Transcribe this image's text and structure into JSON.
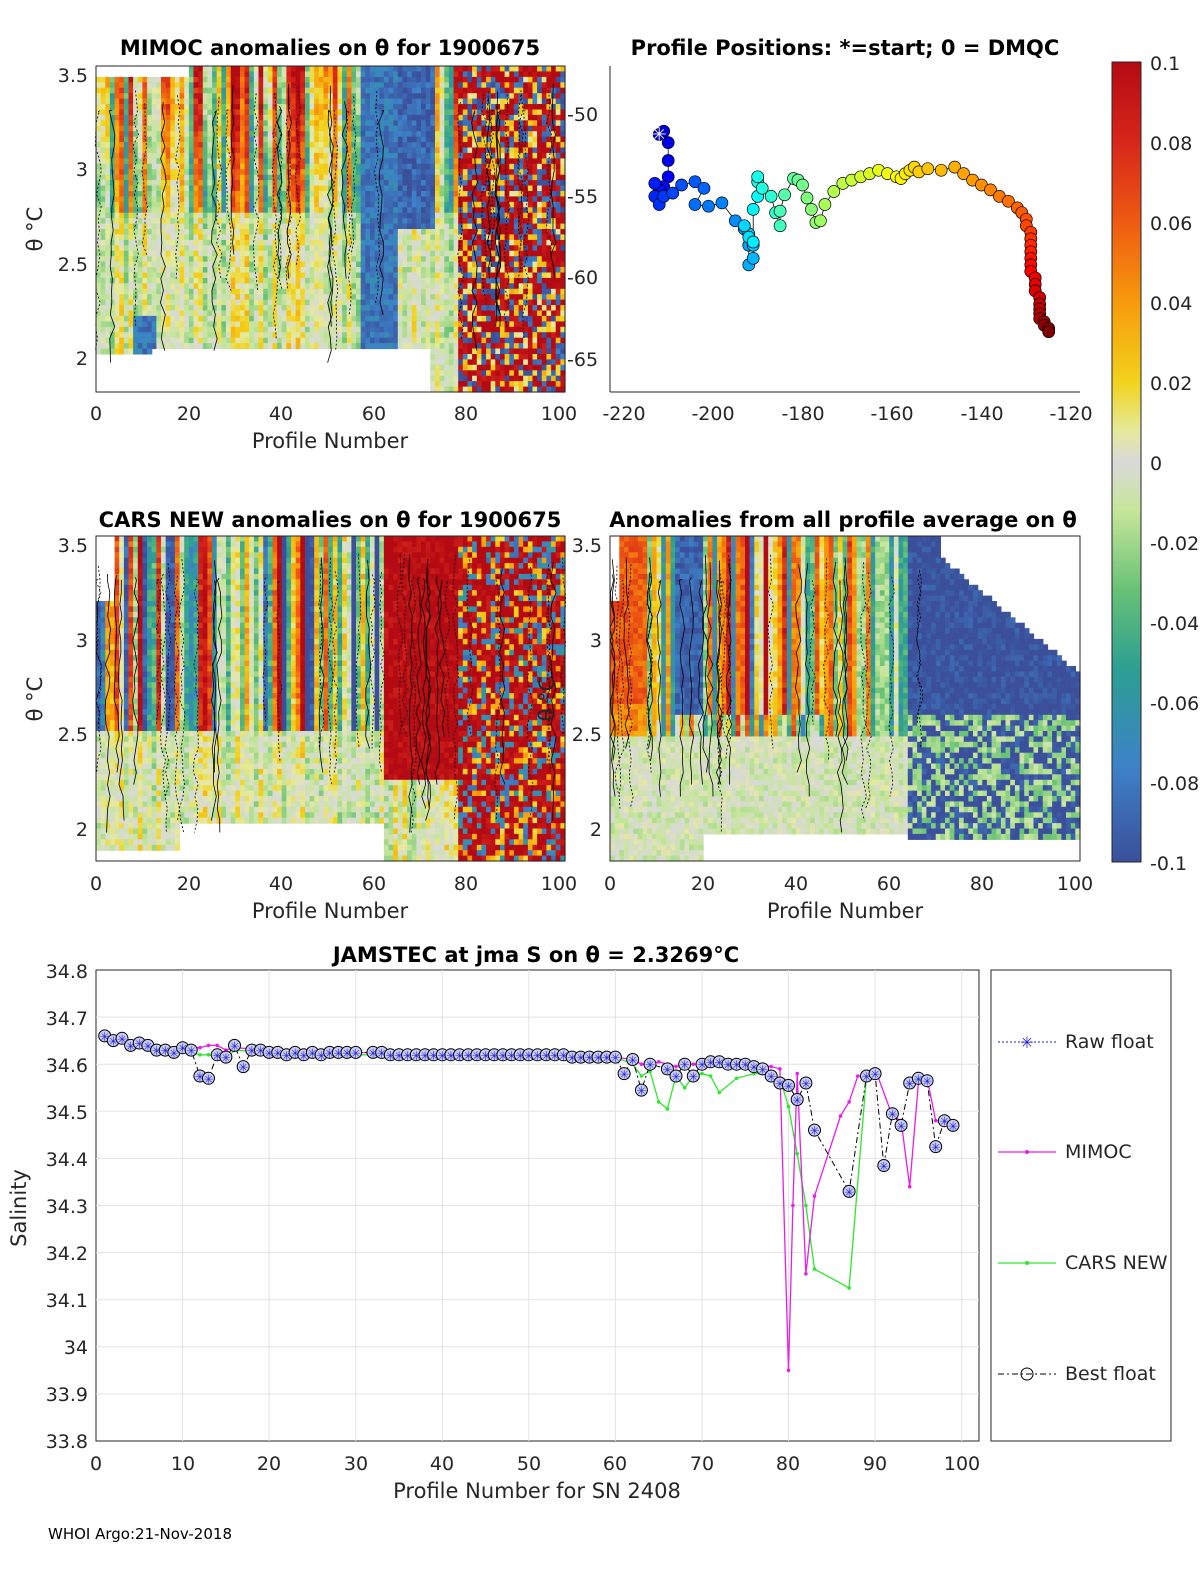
{
  "footer": "WHOI Argo:21-Nov-2018",
  "panels": {
    "mimoc": {
      "title": "MIMOC anomalies on θ  for 1900675",
      "xlabel": "Profile Number",
      "ylabel": "θ °C"
    },
    "positions": {
      "title": "Profile Positions: *=start; 0 = DMQC"
    },
    "cars": {
      "title": "CARS NEW anomalies on θ for 1900675",
      "xlabel": "Profile Number",
      "ylabel": "θ °C"
    },
    "allavg": {
      "title": "Anomalies from all profile average on θ",
      "xlabel": "Profile Number",
      "ylabel": "θ °C"
    }
  },
  "colorbar": {
    "ticks": [
      "0.1",
      "0.08",
      "0.06",
      "0.04",
      "0.02",
      "0",
      "-0.02",
      "-0.04",
      "-0.06",
      "-0.08",
      "-0.1"
    ],
    "colors": [
      "#b40a14",
      "#d7261a",
      "#ee5a12",
      "#f79a0c",
      "#f2d21b",
      "#e5ea9a",
      "#d9d9d9",
      "#c7e69a",
      "#67c276",
      "#2c9e92",
      "#3d82c8",
      "#3b4f9a"
    ]
  },
  "chart_data": [
    {
      "type": "heatmap",
      "panel": "mimoc",
      "title": "MIMOC anomalies on θ  for 1900675",
      "xlabel": "Profile Number",
      "ylabel": "θ °C",
      "xlim": [
        0,
        101
      ],
      "ylim": [
        1.85,
        3.55
      ],
      "xticks": [
        "0",
        "20",
        "40",
        "60",
        "80",
        "100"
      ],
      "yticks": [
        "2",
        "2.5",
        "3",
        "3.5"
      ]
    },
    {
      "type": "scatter",
      "panel": "positions",
      "title": "Profile Positions: *=start; 0 = DMQC",
      "xlim": [
        -222,
        -117
      ],
      "ylim": [
        -67,
        -47
      ],
      "xticks": [
        "-220",
        "-200",
        "-180",
        "-160",
        "-140",
        "-120"
      ],
      "yticks": [
        "-50",
        "-55",
        "-60",
        "-65"
      ],
      "lon": [
        -211,
        -210,
        -209,
        -209,
        -209,
        -210,
        -211,
        -212,
        -212,
        -211,
        -210,
        -208,
        -206,
        -203,
        -201,
        -203,
        -200,
        -197,
        -194,
        -192,
        -191,
        -191,
        -190,
        -190,
        -191,
        -192,
        -191,
        -190,
        -190,
        -189,
        -189,
        -189,
        -188,
        -186,
        -185,
        -184,
        -184,
        -183,
        -181,
        -180,
        -179,
        -178,
        -177,
        -176,
        -175,
        -174,
        -172,
        -170,
        -168,
        -166,
        -164,
        -162,
        -160,
        -158,
        -157,
        -156,
        -155,
        -154,
        -153,
        -151,
        -148,
        -145,
        -143,
        -141,
        -139,
        -137,
        -135,
        -133,
        -131,
        -130,
        -129,
        -129,
        -128,
        -128,
        -128,
        -128,
        -128,
        -128,
        -128,
        -127,
        -127,
        -127,
        -126,
        -126,
        -126,
        -126,
        -126,
        -125,
        -125,
        -124,
        -124
      ],
      "lat": [
        -51.2,
        -51.0,
        -51.7,
        -52.8,
        -53.8,
        -54.4,
        -54.6,
        -54.2,
        -55.0,
        -55.5,
        -55.0,
        -54.8,
        -54.3,
        -54.1,
        -54.5,
        -55.5,
        -55.6,
        -55.4,
        -56.5,
        -57.0,
        -58.0,
        -59.2,
        -58.8,
        -58.0,
        -57.3,
        -56.8,
        -57.5,
        -57.8,
        -55.8,
        -55.0,
        -54.1,
        -53.8,
        -54.5,
        -55.0,
        -56.0,
        -56.8,
        -55.9,
        -54.9,
        -53.9,
        -54.0,
        -54.3,
        -55.1,
        -55.8,
        -56.6,
        -56.5,
        -55.5,
        -54.7,
        -54.2,
        -54.0,
        -53.8,
        -53.6,
        -53.4,
        -53.6,
        -53.8,
        -53.9,
        -53.6,
        -53.4,
        -53.2,
        -53.5,
        -53.3,
        -53.4,
        -53.2,
        -53.6,
        -54.0,
        -54.3,
        -54.6,
        -55.0,
        -55.3,
        -55.7,
        -56.0,
        -56.4,
        -56.8,
        -57.2,
        -57.6,
        -58.0,
        -58.4,
        -58.8,
        -59.2,
        -59.6,
        -60.0,
        -60.4,
        -60.8,
        -61.2,
        -61.6,
        -61.9,
        -62.2,
        -62.5,
        -62.7,
        -62.9,
        -63.1,
        -63.3
      ]
    },
    {
      "type": "heatmap",
      "panel": "cars",
      "title": "CARS NEW anomalies on θ for 1900675",
      "xlabel": "Profile Number",
      "ylabel": "θ °C",
      "xlim": [
        0,
        101
      ],
      "ylim": [
        1.85,
        3.55
      ],
      "xticks": [
        "0",
        "20",
        "40",
        "60",
        "80",
        "100"
      ],
      "yticks": [
        "2",
        "2.5",
        "3",
        "3.5"
      ]
    },
    {
      "type": "heatmap",
      "panel": "allavg",
      "title": "Anomalies from all profile average on θ",
      "xlabel": "Profile Number",
      "ylabel": "θ °C",
      "xlim": [
        0,
        101
      ],
      "ylim": [
        1.85,
        3.55
      ],
      "xticks": [
        "0",
        "20",
        "40",
        "60",
        "80",
        "100"
      ],
      "yticks": [
        "2",
        "2.5",
        "3",
        "3.5"
      ]
    },
    {
      "type": "line",
      "panel": "salinity",
      "title": "JAMSTEC at jma S on θ = 2.3269°C",
      "xlabel": "Profile Number for SN 2408",
      "ylabel": "Salinity",
      "xlim": [
        0,
        102
      ],
      "ylim": [
        33.8,
        34.8
      ],
      "xticks": [
        "0",
        "10",
        "20",
        "30",
        "40",
        "50",
        "60",
        "70",
        "80",
        "90",
        "100"
      ],
      "yticks": [
        "34.8",
        "34.7",
        "34.6",
        "34.5",
        "34.4",
        "34.3",
        "34.2",
        "34.1",
        "34",
        "33.9",
        "33.8"
      ],
      "legend": [
        "Raw float",
        "MIMOC",
        "CARS NEW",
        "Best float"
      ],
      "series": [
        {
          "name": "Best float",
          "x": [
            1,
            2,
            3,
            4,
            5,
            6,
            7,
            8,
            9,
            10,
            11,
            12,
            13,
            14,
            15,
            16,
            17,
            18,
            19,
            20,
            21,
            22,
            23,
            24,
            25,
            26,
            27,
            28,
            29,
            30,
            32,
            33,
            34,
            35,
            36,
            37,
            38,
            39,
            40,
            41,
            42,
            43,
            44,
            45,
            46,
            47,
            48,
            49,
            50,
            51,
            52,
            53,
            54,
            55,
            56,
            57,
            58,
            59,
            60,
            61,
            62,
            63,
            64,
            66,
            67,
            68,
            69,
            70,
            71,
            72,
            73,
            74,
            75,
            76,
            77,
            78,
            79,
            80,
            81,
            82,
            83,
            87,
            89,
            90,
            91,
            92,
            93,
            94,
            95,
            96,
            97,
            98,
            99
          ],
          "y": [
            34.66,
            34.65,
            34.655,
            34.64,
            34.645,
            34.64,
            34.63,
            34.63,
            34.625,
            34.635,
            34.63,
            34.575,
            34.57,
            34.62,
            34.615,
            34.64,
            34.595,
            34.63,
            34.63,
            34.625,
            34.625,
            34.62,
            34.625,
            34.62,
            34.625,
            34.62,
            34.625,
            34.625,
            34.625,
            34.625,
            34.625,
            34.625,
            34.62,
            34.62,
            34.62,
            34.62,
            34.62,
            34.62,
            34.62,
            34.62,
            34.62,
            34.62,
            34.62,
            34.62,
            34.62,
            34.62,
            34.62,
            34.62,
            34.62,
            34.62,
            34.62,
            34.62,
            34.62,
            34.615,
            34.615,
            34.615,
            34.615,
            34.615,
            34.615,
            34.58,
            34.61,
            34.545,
            34.6,
            34.59,
            34.575,
            34.6,
            34.575,
            34.6,
            34.605,
            34.605,
            34.6,
            34.6,
            34.6,
            34.595,
            34.59,
            34.575,
            34.56,
            34.555,
            34.525,
            34.56,
            34.46,
            34.33,
            34.575,
            34.58,
            34.385,
            34.495,
            34.47,
            34.56,
            34.57,
            34.565,
            34.425,
            34.48,
            34.47
          ]
        },
        {
          "name": "MIMOC",
          "x": [
            1,
            2,
            3,
            4,
            5,
            6,
            7,
            8,
            9,
            10,
            11,
            12,
            13,
            14,
            15,
            16,
            20,
            30,
            40,
            50,
            60,
            62,
            63,
            64,
            65,
            66,
            67,
            68,
            69,
            70,
            72,
            74,
            76,
            78,
            79,
            80,
            80.5,
            81,
            82,
            83,
            86,
            87,
            88,
            89,
            90,
            92,
            93,
            94,
            95,
            96,
            97,
            98,
            99
          ],
          "y": [
            34.665,
            34.655,
            34.65,
            34.645,
            34.64,
            34.64,
            34.635,
            34.635,
            34.63,
            34.64,
            34.635,
            34.635,
            34.64,
            34.64,
            34.63,
            34.635,
            34.63,
            34.625,
            34.62,
            34.62,
            34.615,
            34.61,
            34.6,
            34.6,
            34.605,
            34.6,
            34.595,
            34.6,
            34.6,
            34.6,
            34.6,
            34.6,
            34.6,
            34.595,
            34.59,
            33.95,
            34.3,
            34.58,
            34.155,
            34.32,
            34.49,
            34.52,
            34.575,
            34.57,
            34.59,
            34.49,
            34.48,
            34.34,
            34.56,
            34.57,
            34.48,
            34.48,
            34.47
          ]
        },
        {
          "name": "CARS NEW",
          "x": [
            1,
            2,
            3,
            4,
            5,
            6,
            7,
            8,
            9,
            10,
            11,
            12,
            13,
            14,
            15,
            16,
            20,
            30,
            40,
            50,
            60,
            62,
            63,
            64,
            65,
            66,
            67,
            68,
            69,
            70,
            71,
            72,
            74,
            76,
            78,
            79,
            80,
            81,
            82,
            83,
            87,
            89
          ],
          "y": [
            34.66,
            34.65,
            34.65,
            34.645,
            34.64,
            34.635,
            34.63,
            34.63,
            34.63,
            34.63,
            34.625,
            34.62,
            34.62,
            34.615,
            34.61,
            34.63,
            34.625,
            34.62,
            34.62,
            34.62,
            34.615,
            34.6,
            34.575,
            34.585,
            34.52,
            34.505,
            34.575,
            34.55,
            34.575,
            34.58,
            34.575,
            34.54,
            34.57,
            34.58,
            34.58,
            34.57,
            34.51,
            34.41,
            34.3,
            34.165,
            34.125,
            34.575
          ]
        }
      ]
    }
  ]
}
